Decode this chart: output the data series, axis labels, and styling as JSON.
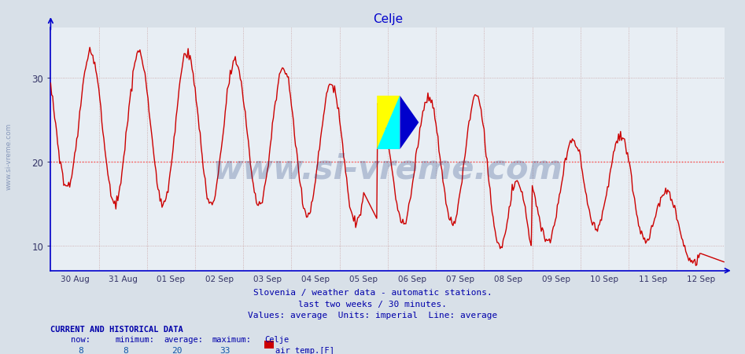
{
  "title": "Celje",
  "title_color": "#0000cc",
  "title_fontsize": 11,
  "bg_color": "#d8e0e8",
  "plot_bg_color": "#e8eef4",
  "line_color": "#cc0000",
  "line_width": 1.0,
  "avg_line_value": 20,
  "avg_line_color": "#ff4444",
  "avg_line_style": ":",
  "grid_color": "#c8a0a0",
  "grid_style": ":",
  "axis_color": "#0000cc",
  "yticklabel_color": "#333366",
  "xticklabel_color": "#333366",
  "ylim": [
    7,
    36
  ],
  "yticks": [
    10,
    20,
    30
  ],
  "xlabel_texts": [
    "30 Aug",
    "31 Aug",
    "01 Sep",
    "02 Sep",
    "03 Sep",
    "04 Sep",
    "05 Sep",
    "06 Sep",
    "07 Sep",
    "08 Sep",
    "09 Sep",
    "10 Sep",
    "11 Sep",
    "12 Sep"
  ],
  "footnote_lines": [
    "Slovenia / weather data - automatic stations.",
    "last two weeks / 30 minutes.",
    "Values: average  Units: imperial  Line: average"
  ],
  "footnote_color": "#0000aa",
  "footnote_fontsize": 8,
  "watermark_text": "www.si-vreme.com",
  "watermark_color": "#1a3a7a",
  "watermark_fontsize": 30,
  "watermark_alpha": 0.25,
  "sidebar_text": "www.si-vreme.com",
  "sidebar_color": "#8899bb",
  "sidebar_fontsize": 6.5,
  "bottom_label_color": "#0000aa",
  "bottom_value_color": "#1155aa",
  "now_val": 8,
  "min_val": 8,
  "avg_val": 20,
  "max_val": 33,
  "station_name": "Celje",
  "legend_label": "air temp.[F]",
  "legend_color": "#cc0000",
  "num_points": 672
}
